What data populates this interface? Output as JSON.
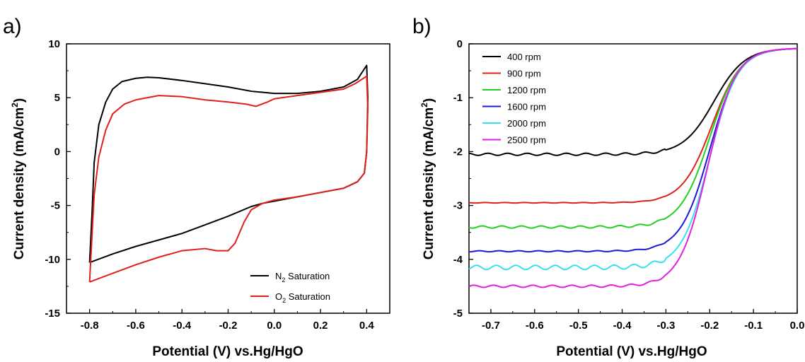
{
  "chart_data": [
    {
      "panel": "a)",
      "type": "line",
      "xlabel": "Potential (V) vs.Hg/HgO",
      "ylabel": "Current density (mA/cm",
      "ylabel_sup": "2",
      "ylabel_end": ")",
      "xlim": [
        -0.9,
        0.5
      ],
      "ylim": [
        -15,
        10
      ],
      "xticks": [
        -0.8,
        -0.6,
        -0.4,
        -0.2,
        0.0,
        0.2,
        0.4
      ],
      "xtick_labels": [
        "-0.8",
        "-0.6",
        "-0.4",
        "-0.2",
        "0.0",
        "0.2",
        "0.4"
      ],
      "yticks": [
        -15,
        -10,
        -5,
        0,
        5,
        10
      ],
      "ytick_labels": [
        "-15",
        "-10",
        "-5",
        "0",
        "5",
        "10"
      ],
      "legend_position": "bottom-right",
      "series": [
        {
          "name": "N",
          "name_sub": "2",
          "name_rest": " Saturation",
          "color": "#000000",
          "points": [
            [
              -0.8,
              -10.3
            ],
            [
              -0.79,
              -6
            ],
            [
              -0.78,
              -1
            ],
            [
              -0.76,
              2.5
            ],
            [
              -0.73,
              4.6
            ],
            [
              -0.7,
              5.8
            ],
            [
              -0.66,
              6.5
            ],
            [
              -0.6,
              6.8
            ],
            [
              -0.55,
              6.9
            ],
            [
              -0.5,
              6.85
            ],
            [
              -0.4,
              6.6
            ],
            [
              -0.3,
              6.3
            ],
            [
              -0.2,
              6.0
            ],
            [
              -0.1,
              5.6
            ],
            [
              0.0,
              5.4
            ],
            [
              0.1,
              5.4
            ],
            [
              0.2,
              5.6
            ],
            [
              0.3,
              6.0
            ],
            [
              0.36,
              6.7
            ],
            [
              0.4,
              8.0
            ],
            [
              0.405,
              5
            ],
            [
              0.4,
              0
            ],
            [
              0.39,
              -2
            ],
            [
              0.36,
              -2.8
            ],
            [
              0.3,
              -3.4
            ],
            [
              0.2,
              -3.8
            ],
            [
              0.1,
              -4.2
            ],
            [
              0.0,
              -4.6
            ],
            [
              -0.05,
              -4.8
            ],
            [
              -0.1,
              -5.1
            ],
            [
              -0.2,
              -6.0
            ],
            [
              -0.3,
              -6.8
            ],
            [
              -0.4,
              -7.6
            ],
            [
              -0.5,
              -8.2
            ],
            [
              -0.6,
              -8.8
            ],
            [
              -0.7,
              -9.5
            ],
            [
              -0.8,
              -10.3
            ]
          ]
        },
        {
          "name": "O",
          "name_sub": "2",
          "name_rest": " Saturation",
          "color": "#e0201b",
          "points": [
            [
              -0.8,
              -12.1
            ],
            [
              -0.79,
              -8
            ],
            [
              -0.78,
              -4
            ],
            [
              -0.76,
              -0.5
            ],
            [
              -0.73,
              2
            ],
            [
              -0.7,
              3.5
            ],
            [
              -0.65,
              4.4
            ],
            [
              -0.6,
              4.8
            ],
            [
              -0.5,
              5.2
            ],
            [
              -0.4,
              5.1
            ],
            [
              -0.3,
              4.8
            ],
            [
              -0.2,
              4.6
            ],
            [
              -0.12,
              4.4
            ],
            [
              -0.08,
              4.2
            ],
            [
              -0.03,
              4.6
            ],
            [
              0.0,
              4.9
            ],
            [
              0.1,
              5.2
            ],
            [
              0.2,
              5.5
            ],
            [
              0.3,
              5.8
            ],
            [
              0.35,
              6.3
            ],
            [
              0.4,
              7.0
            ],
            [
              0.405,
              4
            ],
            [
              0.4,
              0
            ],
            [
              0.39,
              -2
            ],
            [
              0.36,
              -2.8
            ],
            [
              0.3,
              -3.4
            ],
            [
              0.2,
              -3.8
            ],
            [
              0.1,
              -4.2
            ],
            [
              0.0,
              -4.5
            ],
            [
              -0.05,
              -4.8
            ],
            [
              -0.1,
              -5.4
            ],
            [
              -0.13,
              -6.5
            ],
            [
              -0.17,
              -8.5
            ],
            [
              -0.2,
              -9.2
            ],
            [
              -0.25,
              -9.2
            ],
            [
              -0.3,
              -9.0
            ],
            [
              -0.4,
              -9.2
            ],
            [
              -0.5,
              -9.8
            ],
            [
              -0.6,
              -10.5
            ],
            [
              -0.7,
              -11.3
            ],
            [
              -0.8,
              -12.1
            ]
          ]
        }
      ]
    },
    {
      "panel": "b)",
      "type": "line",
      "xlabel": "Potential (V) vs.Hg/HgO",
      "ylabel": "Current density (mA/cm",
      "ylabel_sup": "2",
      "ylabel_end": ")",
      "xlim": [
        -0.75,
        0.0
      ],
      "ylim": [
        -5,
        0
      ],
      "xticks": [
        -0.7,
        -0.6,
        -0.5,
        -0.4,
        -0.3,
        -0.2,
        -0.1,
        0.0
      ],
      "xtick_labels": [
        "-0.7",
        "-0.6",
        "-0.5",
        "-0.4",
        "-0.3",
        "-0.2",
        "-0.1",
        "0.0"
      ],
      "yticks": [
        -5,
        -4,
        -3,
        -2,
        -1,
        0
      ],
      "ytick_labels": [
        "-5",
        "-4",
        "-3",
        "-2",
        "-1",
        "0"
      ],
      "legend_position": "top-left",
      "series": [
        {
          "name": "400 rpm",
          "color": "#000000",
          "limit": -2.05,
          "wiggle": 0.02,
          "half": -0.19,
          "k": 0.035,
          "points": [
            [
              -0.75,
              -2.05
            ],
            [
              -0.6,
              -2.03
            ],
            [
              -0.5,
              -2.03
            ],
            [
              -0.4,
              -2.05
            ],
            [
              -0.3,
              -2.03
            ],
            [
              -0.25,
              -1.85
            ],
            [
              -0.2,
              -1.6
            ],
            [
              -0.15,
              -1.15
            ],
            [
              -0.1,
              -0.55
            ],
            [
              -0.05,
              -0.2
            ],
            [
              0.0,
              -0.08
            ]
          ]
        },
        {
          "name": "900 rpm",
          "color": "#e0201b",
          "limit": -2.95,
          "wiggle": 0.005,
          "half": -0.195,
          "k": 0.034,
          "points": [
            [
              -0.75,
              -2.95
            ],
            [
              -0.6,
              -2.94
            ],
            [
              -0.5,
              -2.95
            ],
            [
              -0.4,
              -2.93
            ],
            [
              -0.33,
              -2.85
            ],
            [
              -0.25,
              -2.55
            ],
            [
              -0.2,
              -2.05
            ],
            [
              -0.15,
              -1.35
            ],
            [
              -0.1,
              -0.6
            ],
            [
              -0.05,
              -0.22
            ],
            [
              0.0,
              -0.08
            ]
          ]
        },
        {
          "name": "1200 rpm",
          "color": "#22d022",
          "limit": -3.4,
          "wiggle": 0.02,
          "half": -0.2,
          "k": 0.034,
          "points": [
            [
              -0.75,
              -3.4
            ],
            [
              -0.65,
              -3.42
            ],
            [
              -0.55,
              -3.37
            ],
            [
              -0.45,
              -3.35
            ],
            [
              -0.38,
              -3.35
            ],
            [
              -0.3,
              -3.1
            ],
            [
              -0.25,
              -2.75
            ],
            [
              -0.2,
              -2.25
            ],
            [
              -0.15,
              -1.45
            ],
            [
              -0.1,
              -0.65
            ],
            [
              -0.05,
              -0.22
            ],
            [
              0.0,
              -0.08
            ]
          ]
        },
        {
          "name": "1600 rpm",
          "color": "#1a1ad8",
          "limit": -3.85,
          "wiggle": 0.01,
          "half": -0.2,
          "k": 0.033,
          "points": [
            [
              -0.75,
              -3.85
            ],
            [
              -0.65,
              -3.85
            ],
            [
              -0.55,
              -3.8
            ],
            [
              -0.45,
              -3.8
            ],
            [
              -0.38,
              -3.75
            ],
            [
              -0.3,
              -3.5
            ],
            [
              -0.25,
              -3.05
            ],
            [
              -0.2,
              -2.35
            ],
            [
              -0.15,
              -1.5
            ],
            [
              -0.1,
              -0.65
            ],
            [
              -0.05,
              -0.22
            ],
            [
              0.0,
              -0.08
            ]
          ]
        },
        {
          "name": "2000 rpm",
          "color": "#38e0ee",
          "limit": -4.15,
          "wiggle": 0.04,
          "half": -0.2,
          "k": 0.032,
          "points": [
            [
              -0.75,
              -4.15
            ],
            [
              -0.65,
              -4.13
            ],
            [
              -0.55,
              -4.12
            ],
            [
              -0.45,
              -4.1
            ],
            [
              -0.38,
              -4.0
            ],
            [
              -0.3,
              -3.7
            ],
            [
              -0.25,
              -3.2
            ],
            [
              -0.2,
              -2.45
            ],
            [
              -0.15,
              -1.55
            ],
            [
              -0.1,
              -0.65
            ],
            [
              -0.05,
              -0.22
            ],
            [
              0.0,
              -0.08
            ]
          ]
        },
        {
          "name": "2500 rpm",
          "color": "#e020e0",
          "limit": -4.5,
          "wiggle": 0.02,
          "half": -0.205,
          "k": 0.032,
          "points": [
            [
              -0.75,
              -4.5
            ],
            [
              -0.65,
              -4.47
            ],
            [
              -0.55,
              -4.45
            ],
            [
              -0.45,
              -4.42
            ],
            [
              -0.38,
              -4.3
            ],
            [
              -0.3,
              -3.85
            ],
            [
              -0.25,
              -3.3
            ],
            [
              -0.2,
              -2.5
            ],
            [
              -0.15,
              -1.55
            ],
            [
              -0.1,
              -0.65
            ],
            [
              -0.05,
              -0.22
            ],
            [
              0.0,
              -0.08
            ]
          ]
        }
      ]
    }
  ]
}
